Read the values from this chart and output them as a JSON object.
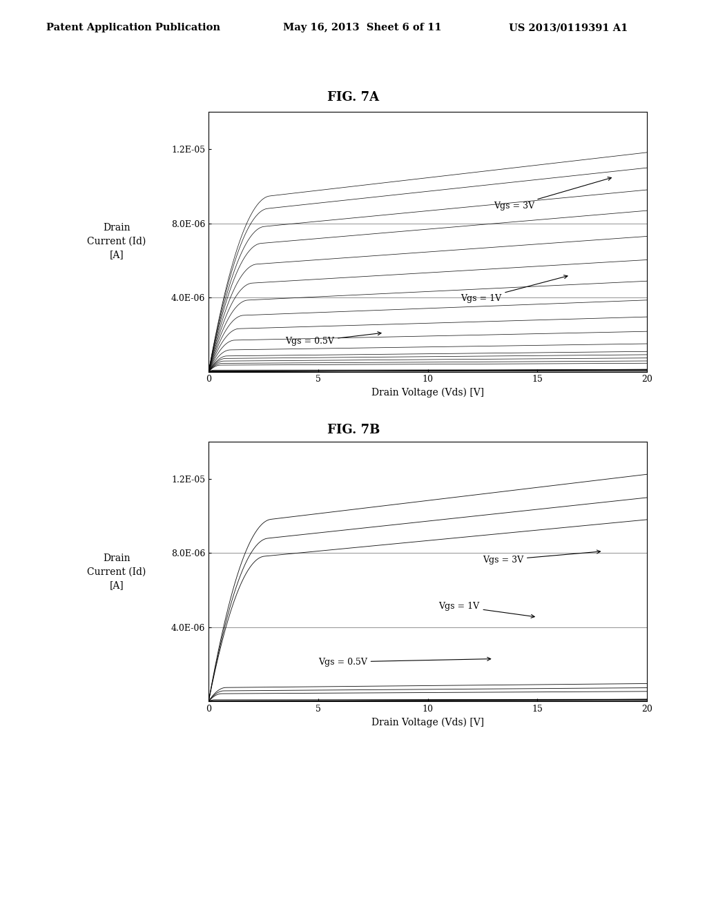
{
  "title_7a": "FIG. 7A",
  "title_7b": "FIG. 7B",
  "header_left": "Patent Application Publication",
  "header_center": "May 16, 2013  Sheet 6 of 11",
  "header_right": "US 2013/0119391 A1",
  "xlabel": "Drain Voltage (Vds) [V]",
  "ylabel_line1": "Drain",
  "ylabel_line2": "Current (Id)",
  "ylabel_line3": "[A]",
  "xlim": [
    0,
    20
  ],
  "ylim": [
    0,
    1.4e-05
  ],
  "yticks": [
    0,
    4e-06,
    8e-06,
    1.2e-05
  ],
  "ytick_labels": [
    "",
    "4.0E-06",
    "8.0E-06",
    "1.2E-05"
  ],
  "xticks": [
    0,
    5,
    10,
    15,
    20
  ],
  "background_color": "#ffffff",
  "line_color": "#000000"
}
